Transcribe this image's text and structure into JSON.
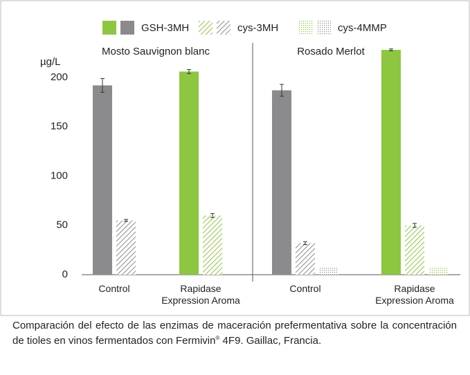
{
  "chart_data": [
    {
      "type": "bar",
      "title": "Mosto Sauvignon blanc",
      "y_label": "µg/L",
      "categories": [
        "Control",
        "Rapidase Expression Aroma"
      ],
      "category_colors": [
        "#8b8b8d",
        "#8dc63f"
      ],
      "ylim": [
        0,
        230
      ],
      "yticks": [
        0,
        50,
        100,
        150,
        200
      ],
      "series": [
        {
          "name": "GSH-3MH",
          "pattern": "solid",
          "values": [
            192,
            206
          ],
          "errors": [
            7,
            2
          ]
        },
        {
          "name": "cys-3MH",
          "pattern": "hatch",
          "values": [
            55,
            60
          ],
          "errors": [
            1,
            2
          ]
        },
        {
          "name": "cys-4MMP",
          "pattern": "dots",
          "values": [
            null,
            null
          ],
          "errors": [
            null,
            null
          ]
        }
      ]
    },
    {
      "type": "bar",
      "title": "Rosado Merlot",
      "categories": [
        "Control",
        "Rapidase Expression Aroma"
      ],
      "category_colors": [
        "#8b8b8d",
        "#8dc63f"
      ],
      "ylim": [
        0,
        230
      ],
      "series": [
        {
          "pattern": "solid",
          "values": [
            187,
            228
          ],
          "errors": [
            6,
            1
          ]
        },
        {
          "pattern": "hatch",
          "values": [
            32,
            50
          ],
          "errors": [
            1.5,
            2
          ]
        },
        {
          "pattern": "dots",
          "values": [
            7,
            7
          ],
          "errors": [
            null,
            null
          ]
        }
      ]
    }
  ],
  "caption": [
    "Comparación del efecto de las enzimas de maceración prefermentativa sobre la concentración de tioles en vinos fermentados con Fermivin",
    "®",
    " 4F9. Gaillac, Francia."
  ]
}
